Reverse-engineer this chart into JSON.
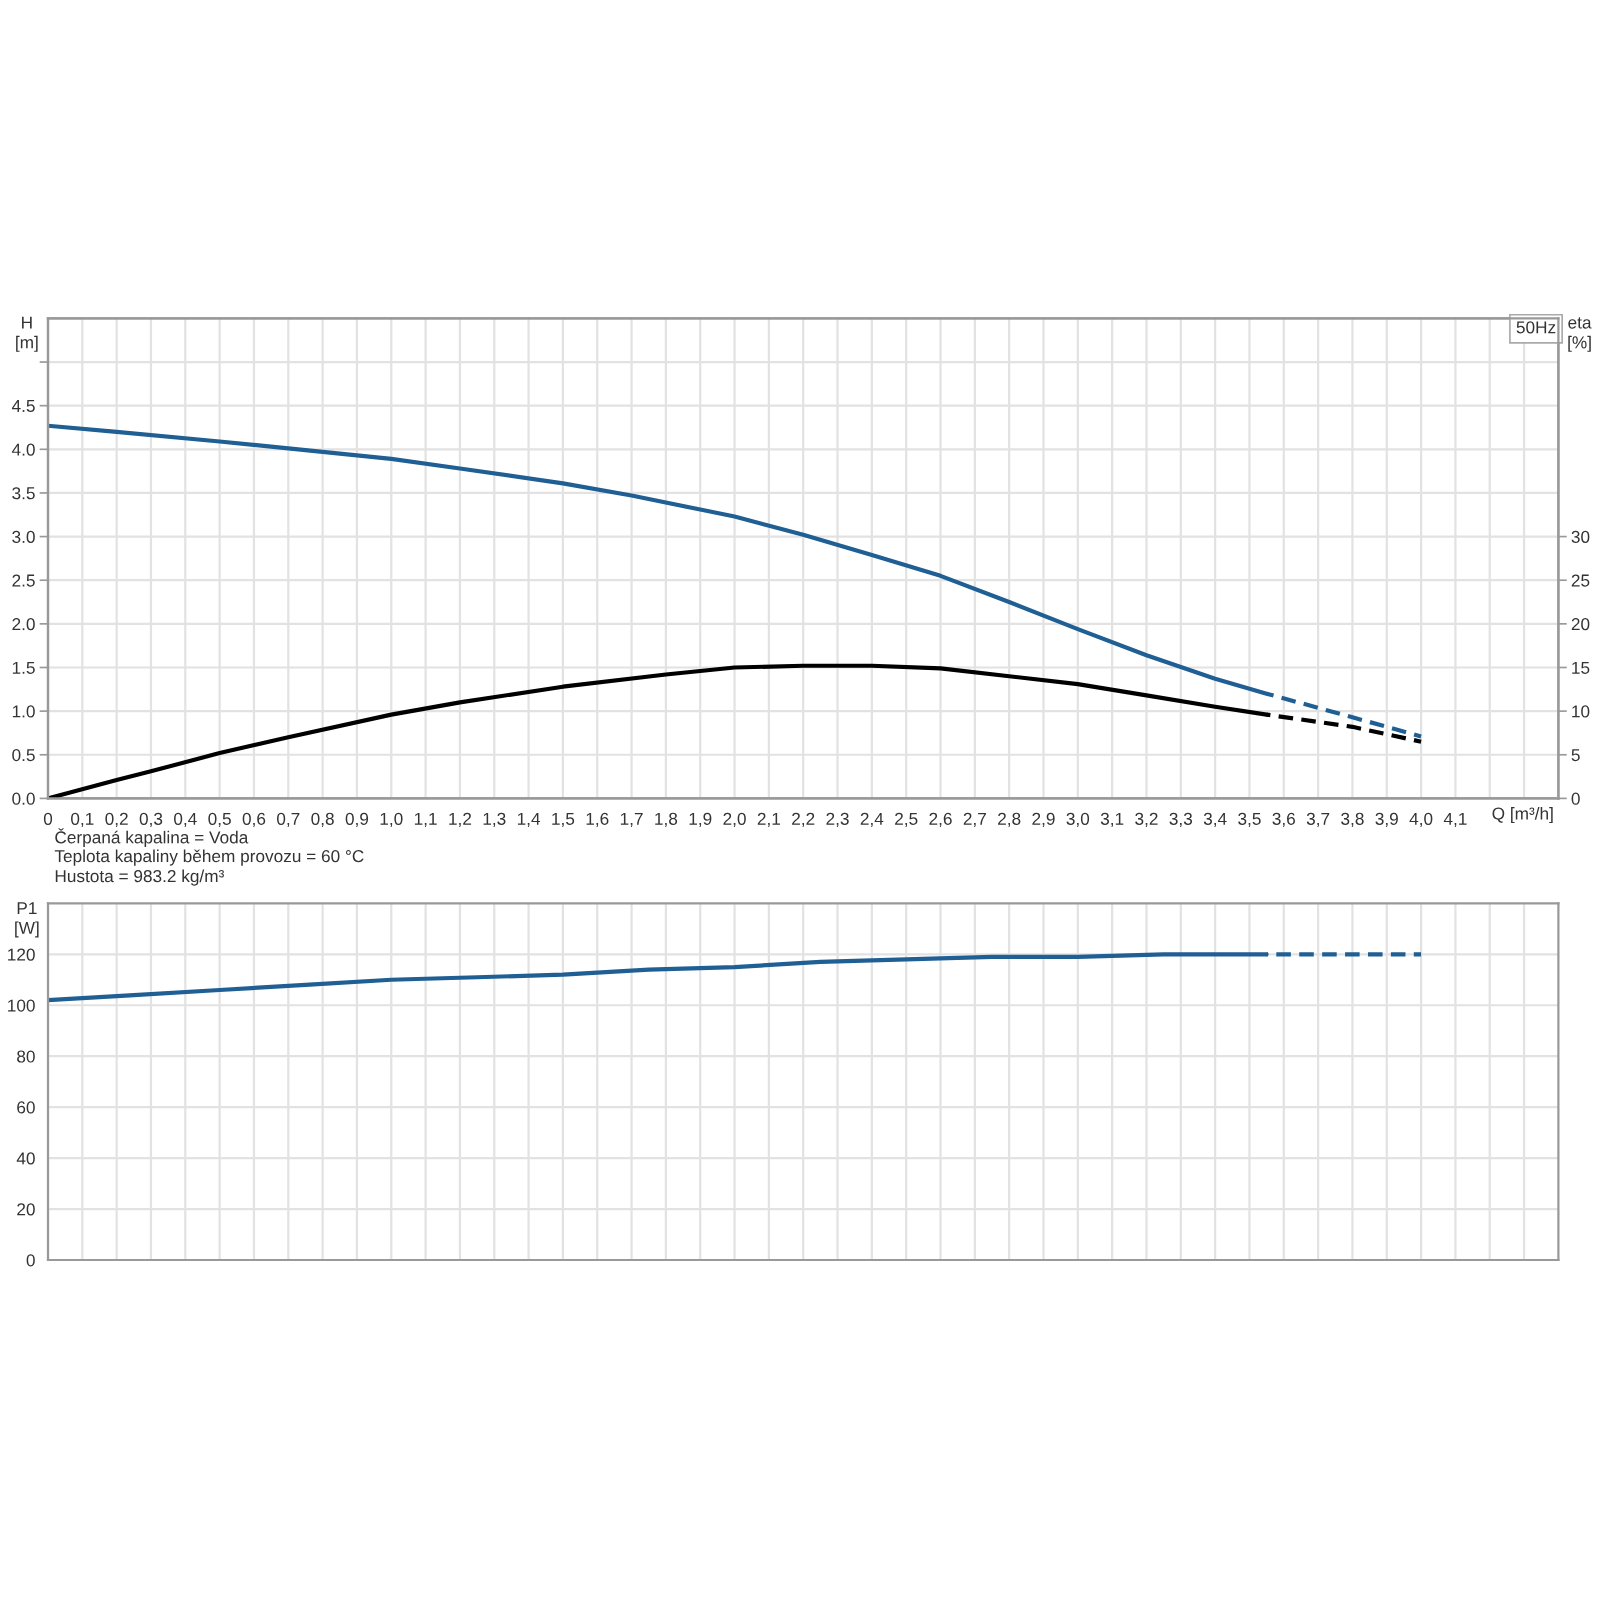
{
  "chart_data": [
    {
      "type": "line",
      "subtitle": "50Hz",
      "xlabel": "Q [m³/h]",
      "ylabel": "H\n[m]",
      "y2label": "eta\n[%]",
      "annotations": [
        "Čerpaná kapalina = Voda",
        "Teplota kapaliny během provozu = 60 °C",
        "Hustota = 983.2 kg/m³"
      ],
      "xlim": [
        0,
        4.4
      ],
      "xticks": [
        0,
        {
          "value": 0.1,
          "label": "0,1"
        },
        {
          "value": 0.2,
          "label": "0,2"
        },
        {
          "value": 0.3,
          "label": "0,3"
        },
        {
          "value": 0.4,
          "label": "0,4"
        },
        {
          "value": 0.5,
          "label": "0,5"
        },
        {
          "value": 0.6,
          "label": "0,6"
        },
        {
          "value": 0.7,
          "label": "0,7"
        },
        {
          "value": 0.8,
          "label": "0,8"
        },
        {
          "value": 0.9,
          "label": "0,9"
        },
        {
          "value": 1.0,
          "label": "1,0"
        },
        {
          "value": 1.1,
          "label": "1,1"
        },
        {
          "value": 1.2,
          "label": "1,2"
        },
        {
          "value": 1.3,
          "label": "1,3"
        },
        {
          "value": 1.4,
          "label": "1,4"
        },
        {
          "value": 1.5,
          "label": "1,5"
        },
        {
          "value": 1.6,
          "label": "1,6"
        },
        {
          "value": 1.7,
          "label": "1,7"
        },
        {
          "value": 1.8,
          "label": "1,8"
        },
        {
          "value": 1.9,
          "label": "1,9"
        },
        {
          "value": 2.0,
          "label": "2,0"
        },
        {
          "value": 2.1,
          "label": "2,1"
        },
        {
          "value": 2.2,
          "label": "2,2"
        },
        {
          "value": 2.3,
          "label": "2,3"
        },
        {
          "value": 2.4,
          "label": "2,4"
        },
        {
          "value": 2.5,
          "label": "2,5"
        },
        {
          "value": 2.6,
          "label": "2,6"
        },
        {
          "value": 2.7,
          "label": "2,7"
        },
        {
          "value": 2.8,
          "label": "2,8"
        },
        {
          "value": 2.9,
          "label": "2,9"
        },
        {
          "value": 3.0,
          "label": "3,0"
        },
        {
          "value": 3.1,
          "label": "3,1"
        },
        {
          "value": 3.2,
          "label": "3,2"
        },
        {
          "value": 3.3,
          "label": "3,3"
        },
        {
          "value": 3.4,
          "label": "3,4"
        },
        {
          "value": 3.5,
          "label": "3,5"
        },
        {
          "value": 3.6,
          "label": "3,6"
        },
        {
          "value": 3.7,
          "label": "3,7"
        },
        {
          "value": 3.8,
          "label": "3,8"
        },
        {
          "value": 3.9,
          "label": "3,9"
        },
        {
          "value": 4.0,
          "label": "4,0"
        },
        {
          "value": 4.1,
          "label": "4,1"
        },
        {
          "value": 4.2,
          "label": null
        },
        {
          "value": 4.3,
          "label": null
        }
      ],
      "ylim": [
        0,
        5.5
      ],
      "yticks": [
        {
          "value": 0,
          "label": "0.0"
        },
        0.5,
        {
          "value": 1,
          "label": "1.0"
        },
        1.5,
        {
          "value": 2,
          "label": "2.0"
        },
        2.5,
        {
          "value": 3,
          "label": "3.0"
        },
        3.5,
        {
          "value": 4,
          "label": "4.0"
        },
        4.5,
        {
          "value": 5,
          "label": null
        }
      ],
      "y2lim": [
        0,
        55
      ],
      "y2ticks": [
        0,
        5,
        10,
        15,
        20,
        25,
        30
      ],
      "grid": true,
      "series": [
        {
          "color": "#1f5f94",
          "line_style": "solid",
          "x": [
            0,
            0.2,
            0.5,
            0.7,
            1.0,
            1.2,
            1.5,
            1.7,
            1.9,
            2.0,
            2.2,
            2.4,
            2.6,
            2.8,
            3.0,
            3.2,
            3.4,
            3.55
          ],
          "values": [
            4.27,
            4.2,
            4.09,
            4.01,
            3.89,
            3.78,
            3.61,
            3.47,
            3.31,
            3.23,
            3.02,
            2.79,
            2.55,
            2.25,
            1.94,
            1.64,
            1.37,
            1.2
          ]
        },
        {
          "color": "#1f5f94",
          "line_style": "dashed",
          "x": [
            3.55,
            3.8,
            4.0
          ],
          "values": [
            1.2,
            0.93,
            0.71
          ]
        },
        {
          "color": "#000000",
          "line_style": "solid",
          "axis": "y2",
          "x": [
            0,
            0.2,
            0.3,
            0.5,
            0.7,
            1.0,
            1.2,
            1.5,
            1.8,
            2.0,
            2.2,
            2.4,
            2.6,
            2.8,
            3.0,
            3.2,
            3.4,
            3.55
          ],
          "values": [
            0,
            2.1,
            3.1,
            5.2,
            7.0,
            9.6,
            11.0,
            12.8,
            14.2,
            15.0,
            15.2,
            15.2,
            14.9,
            14.0,
            13.1,
            11.8,
            10.5,
            9.6
          ]
        },
        {
          "color": "#000000",
          "line_style": "dashed",
          "axis": "y2",
          "x": [
            3.55,
            3.8,
            4.0
          ],
          "values": [
            9.6,
            8.2,
            6.5
          ]
        }
      ]
    },
    {
      "type": "line",
      "ylabel": "P1\n[W]",
      "tick_labels": "y",
      "xlim": [
        0,
        4.4
      ],
      "xticks": [
        0,
        0.1,
        0.2,
        0.3,
        0.4,
        0.5,
        0.6,
        0.7,
        0.8,
        0.9,
        1.0,
        1.1,
        1.2,
        1.3,
        1.4,
        1.5,
        1.6,
        1.7,
        1.8,
        1.9,
        2.0,
        2.1,
        2.2,
        2.3,
        2.4,
        2.5,
        2.6,
        2.7,
        2.8,
        2.9,
        3.0,
        3.1,
        3.2,
        3.3,
        3.4,
        3.5,
        3.6,
        3.7,
        3.8,
        3.9,
        4.0,
        4.1,
        4.2,
        4.3
      ],
      "ylim": [
        0,
        140
      ],
      "yticks": [
        0,
        20,
        40,
        60,
        80,
        100,
        120
      ],
      "grid": true,
      "series": [
        {
          "color": "#1f5f94",
          "line_style": "solid",
          "x": [
            0,
            0.25,
            0.5,
            0.75,
            1.0,
            1.25,
            1.5,
            1.75,
            2.0,
            2.25,
            2.5,
            2.75,
            3.0,
            3.25,
            3.55
          ],
          "values": [
            102,
            104,
            106,
            108,
            110,
            111,
            112,
            114,
            115,
            117,
            118,
            119,
            119,
            120,
            120
          ]
        },
        {
          "color": "#1f5f94",
          "line_style": "dashed",
          "x": [
            3.55,
            4.0
          ],
          "values": [
            120,
            120
          ]
        }
      ]
    }
  ]
}
